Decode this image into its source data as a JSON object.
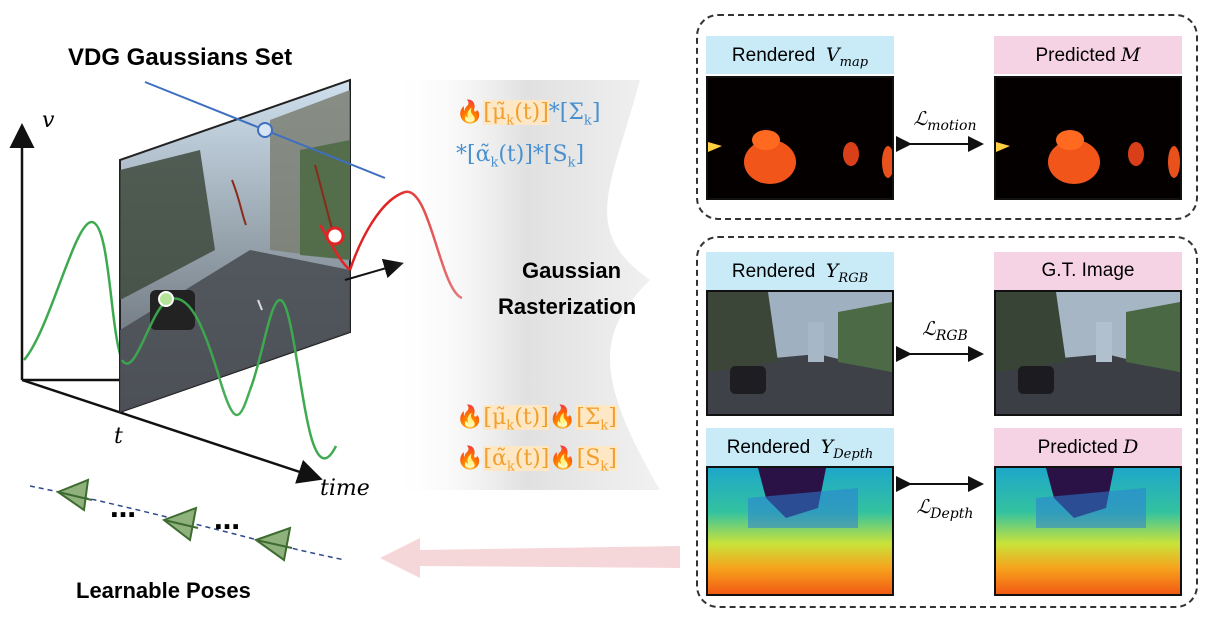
{
  "left": {
    "title": "VDG Gaussians Set",
    "axis_v": "v",
    "axis_t": "t",
    "axis_time": "time",
    "poses_label": "Learnable Poses",
    "dots": "…"
  },
  "middle": {
    "rasterization_line1": "Gaussian",
    "rasterization_line2": "Rasterization",
    "top_formula": {
      "line1": "[μ̃k(t)]*[Σk]",
      "line2": "*[α̃k(t)]*[Sk]"
    },
    "bottom_formula": {
      "line1": "[μ̃k(t)][Σk]",
      "line2": "[α̃k(t)][Sk]"
    }
  },
  "panel_motion": {
    "left_label": "Rendered",
    "left_symbol": "V",
    "left_sub": "map",
    "right_label": "Predicted",
    "right_symbol": "M",
    "loss_symbol": "ℒ",
    "loss_sub": "motion"
  },
  "panel_rgb": {
    "left_label": "Rendered",
    "left_symbol": "Y",
    "left_sub": "RGB",
    "right_label": "G.T. Image",
    "loss_symbol": "ℒ",
    "loss_sub": "RGB"
  },
  "panel_depth": {
    "left_label": "Rendered",
    "left_symbol": "Y",
    "left_sub": "Depth",
    "right_label": "Predicted",
    "right_symbol": "D",
    "loss_symbol": "ℒ",
    "loss_sub": "Depth"
  },
  "colors": {
    "green_curve": "#3daa4f",
    "red_curve": "#e02424",
    "blue_line": "#3f6fbf",
    "orange": "#f0a030",
    "blue_text": "#4a90d0"
  }
}
